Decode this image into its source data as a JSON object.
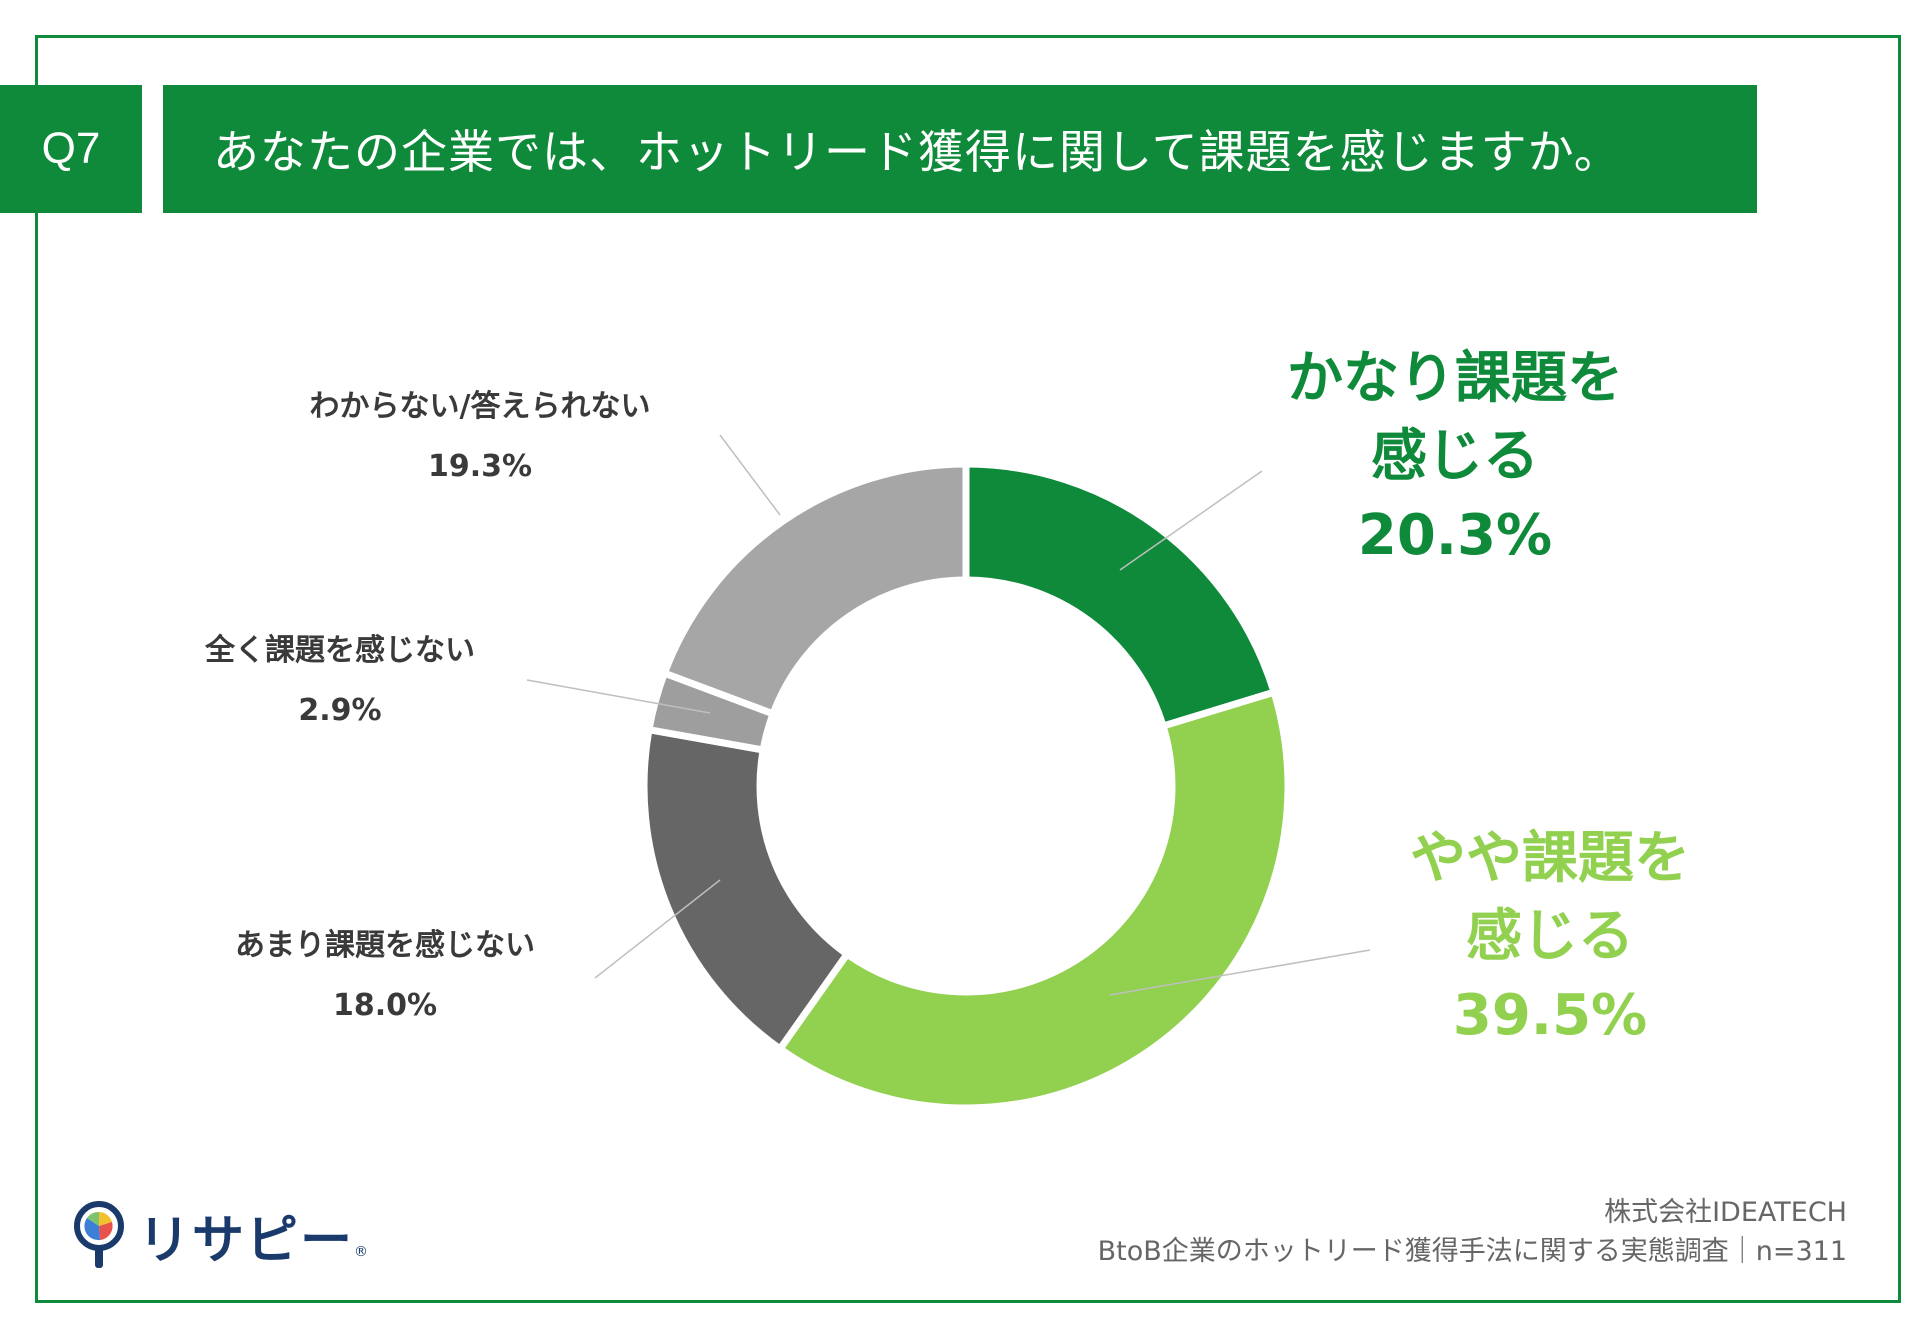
{
  "header": {
    "q_number": "Q7",
    "question": "あなたの企業では、ホットリード獲得に関して課題を感じますか。"
  },
  "chart_data": {
    "type": "pie",
    "variant": "donut",
    "title": "あなたの企業では、ホットリード獲得に関して課題を感じますか。",
    "sample_size": "n=311",
    "slices": [
      {
        "label": "かなり課題を感じる",
        "label_lines": [
          "かなり課題を",
          "感じる"
        ],
        "value": 20.3,
        "value_label": "20.3%",
        "color": "#0e8a3a",
        "text_color": "#0e8a3a",
        "emphasis": true
      },
      {
        "label": "やや課題を感じる",
        "label_lines": [
          "やや課題を",
          "感じる"
        ],
        "value": 39.5,
        "value_label": "39.5%",
        "color": "#92d050",
        "text_color": "#92d050",
        "emphasis": true
      },
      {
        "label": "あまり課題を感じない",
        "label_lines": [
          "あまり課題を感じない"
        ],
        "value": 18.0,
        "value_label": "18.0%",
        "color": "#666666",
        "text_color": "#3a3a3a",
        "emphasis": false
      },
      {
        "label": "全く課題を感じない",
        "label_lines": [
          "全く課題を感じない"
        ],
        "value": 2.9,
        "value_label": "2.9%",
        "color": "#9e9e9e",
        "text_color": "#3a3a3a",
        "emphasis": false
      },
      {
        "label": "わからない/答えられない",
        "label_lines": [
          "わからない/答えられない"
        ],
        "value": 19.3,
        "value_label": "19.3%",
        "color": "#a6a6a6",
        "text_color": "#3a3a3a",
        "emphasis": false
      }
    ]
  },
  "footer": {
    "logo_text": "リサピー",
    "logo_mark": "®",
    "source_company": "株式会社IDEATECH",
    "source_survey": "BtoB企業のホットリード獲得手法に関する実態調査｜n=311"
  },
  "colors": {
    "brand_green": "#0e8a3a",
    "light_green": "#92d050",
    "dark_gray": "#666666",
    "mid_gray": "#9e9e9e",
    "light_gray": "#a6a6a6",
    "logo_navy": "#1a3a6b"
  }
}
